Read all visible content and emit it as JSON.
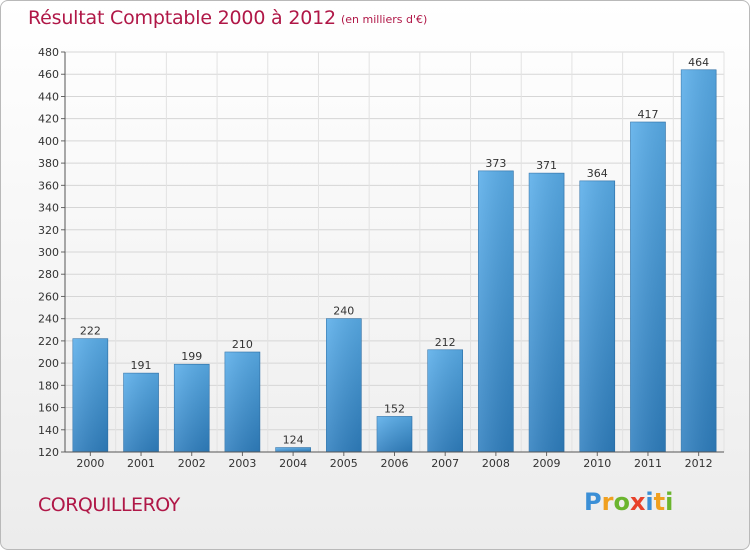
{
  "title": "Résultat Comptable 2000 à 2012",
  "subtitle": "(en milliers d'€)",
  "place": "CORQUILLEROY",
  "logo": {
    "letters": [
      "P",
      "r",
      "o",
      "x",
      "i",
      "t",
      "i"
    ],
    "colors": [
      "#3b8fd6",
      "#f0a020",
      "#6bb52e",
      "#e8412a",
      "#3b8fd6",
      "#f0a020",
      "#6bb52e"
    ]
  },
  "chart_data": {
    "type": "bar",
    "title": "Résultat Comptable 2000 à 2012",
    "subtitle": "(en milliers d'€)",
    "categories": [
      "2000",
      "2001",
      "2002",
      "2003",
      "2004",
      "2005",
      "2006",
      "2007",
      "2008",
      "2009",
      "2010",
      "2011",
      "2012"
    ],
    "values": [
      222,
      191,
      199,
      210,
      124,
      240,
      152,
      212,
      373,
      371,
      364,
      417,
      464
    ],
    "ylim": [
      120,
      480
    ],
    "yticks": [
      120,
      140,
      160,
      180,
      200,
      220,
      240,
      260,
      280,
      300,
      320,
      340,
      360,
      380,
      400,
      420,
      440,
      460,
      480
    ],
    "grid": true,
    "bar_color": "#4a9ede"
  }
}
